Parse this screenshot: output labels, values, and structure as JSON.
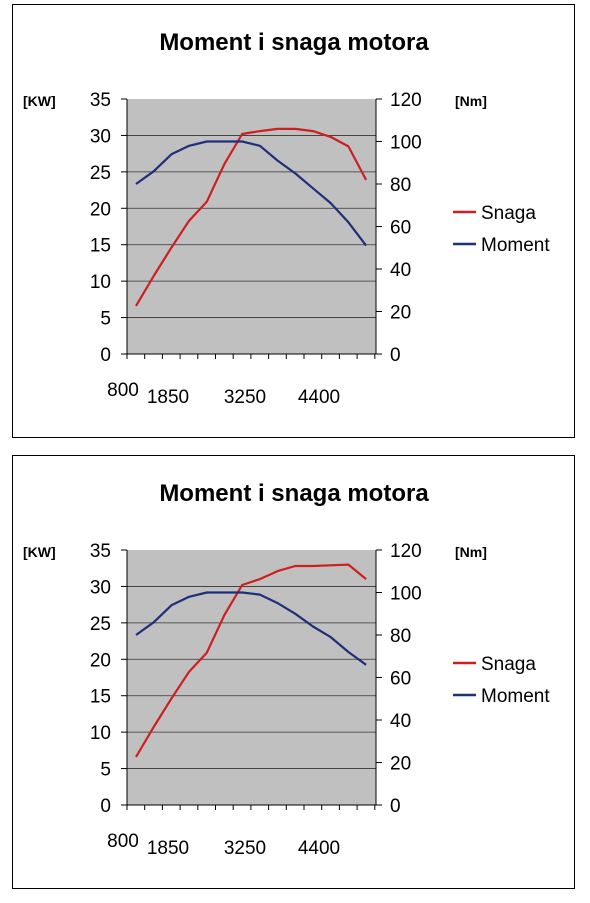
{
  "charts": [
    {
      "title": "Moment i snaga motora",
      "left_axis_unit": "[KW]",
      "right_axis_unit": "[Nm]",
      "left_ticks": [
        "35",
        "30",
        "25",
        "20",
        "15",
        "10",
        "5",
        "0"
      ],
      "right_ticks": [
        "120",
        "100",
        "80",
        "60",
        "40",
        "20",
        "0"
      ],
      "x_labels": [
        "800",
        "1850",
        "3250",
        "4400"
      ],
      "legend": [
        "Snaga",
        "Moment"
      ]
    },
    {
      "title": "Moment i snaga motora",
      "left_axis_unit": "[KW]",
      "right_axis_unit": "[Nm]",
      "left_ticks": [
        "35",
        "30",
        "25",
        "20",
        "15",
        "10",
        "5",
        "0"
      ],
      "right_ticks": [
        "120",
        "100",
        "80",
        "60",
        "40",
        "20",
        "0"
      ],
      "x_labels": [
        "800",
        "1850",
        "3250",
        "4400"
      ],
      "legend": [
        "Snaga",
        "Moment"
      ]
    }
  ],
  "chart_data": [
    {
      "type": "line",
      "title": "Moment i snaga motora",
      "ylabel": "[KW]",
      "y2label": "[Nm]",
      "ylim": [
        0,
        35
      ],
      "y2lim": [
        0,
        120
      ],
      "grid": true,
      "legend_position": "right",
      "x_tick_labels": [
        "800",
        "1850",
        "3250",
        "4400"
      ],
      "x_count": 14,
      "colors": {
        "Snaga": "#cc1f1f",
        "Moment": "#1f2f7a",
        "plot_bg": "#c0c0c0"
      },
      "series": [
        {
          "name": "Snaga",
          "axis": "left",
          "values": [
            6.6,
            10.7,
            14.6,
            18.3,
            20.9,
            26.1,
            30.2,
            30.6,
            30.9,
            30.9,
            30.6,
            29.8,
            28.5,
            23.9
          ]
        },
        {
          "name": "Moment",
          "axis": "right",
          "values": [
            80,
            86,
            94,
            98,
            100,
            100,
            100,
            98,
            91,
            85,
            78,
            71,
            62,
            51
          ]
        }
      ]
    },
    {
      "type": "line",
      "title": "Moment i snaga motora",
      "ylabel": "[KW]",
      "y2label": "[Nm]",
      "ylim": [
        0,
        35
      ],
      "y2lim": [
        0,
        120
      ],
      "grid": true,
      "legend_position": "right",
      "x_tick_labels": [
        "800",
        "1850",
        "3250",
        "4400"
      ],
      "x_count": 14,
      "colors": {
        "Snaga": "#cc1f1f",
        "Moment": "#1f2f7a",
        "plot_bg": "#c0c0c0"
      },
      "series": [
        {
          "name": "Snaga",
          "axis": "left",
          "values": [
            6.6,
            10.7,
            14.6,
            18.3,
            20.9,
            26.1,
            30.2,
            31.0,
            32.1,
            32.8,
            32.8,
            32.9,
            33.0,
            31.0
          ]
        },
        {
          "name": "Moment",
          "axis": "right",
          "values": [
            80,
            86,
            94,
            98,
            100,
            100,
            100,
            99,
            95,
            90,
            84,
            79,
            72,
            66
          ]
        }
      ]
    }
  ]
}
